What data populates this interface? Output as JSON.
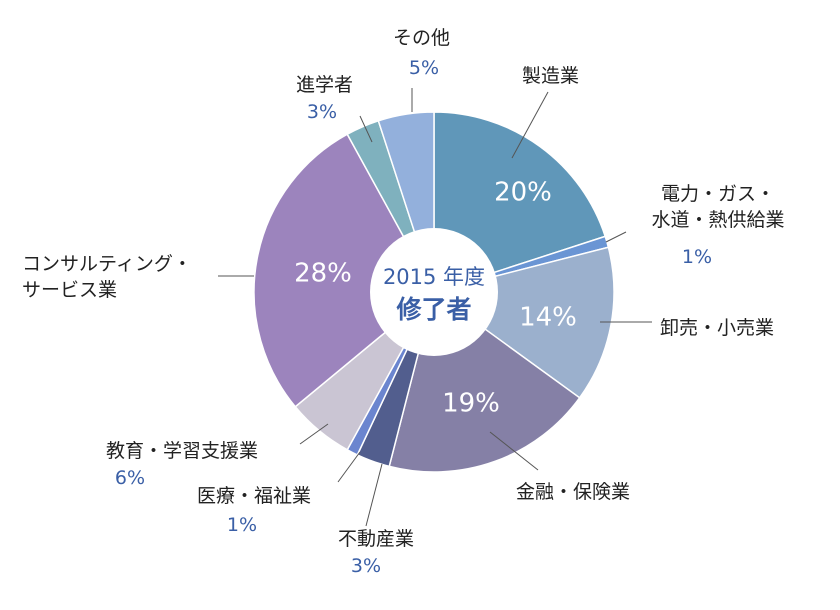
{
  "chart_data": {
    "type": "pie",
    "center_label": {
      "line1": "2015 年度",
      "line2": "修了者"
    },
    "slices": [
      {
        "label": "製造業",
        "value": 20,
        "value_label": "20%",
        "color": "#6097b9"
      },
      {
        "label": "電力・ガス・\n水道・熱供給業",
        "value": 1,
        "value_label": "1%",
        "color": "#6a95d4"
      },
      {
        "label": "卸売・小売業",
        "value": 14,
        "value_label": "14%",
        "color": "#9bb0cd"
      },
      {
        "label": "金融・保険業",
        "value": 19,
        "value_label": "19%",
        "color": "#8580a6"
      },
      {
        "label": "不動産業",
        "value": 3,
        "value_label": "3%",
        "color": "#525e8e"
      },
      {
        "label": "医療・福祉業",
        "value": 1,
        "value_label": "1%",
        "color": "#6b85cf"
      },
      {
        "label": "教育・学習支援業",
        "value": 6,
        "value_label": "6%",
        "color": "#cac5d3"
      },
      {
        "label": "コンサルティング・\nサービス業",
        "value": 28,
        "value_label": "28%",
        "color": "#9c84bd"
      },
      {
        "label": "進学者",
        "value": 3,
        "value_label": "3%",
        "color": "#7fb1be"
      },
      {
        "label": "その他",
        "value": 5,
        "value_label": "5%",
        "color": "#93b0dc"
      }
    ]
  }
}
